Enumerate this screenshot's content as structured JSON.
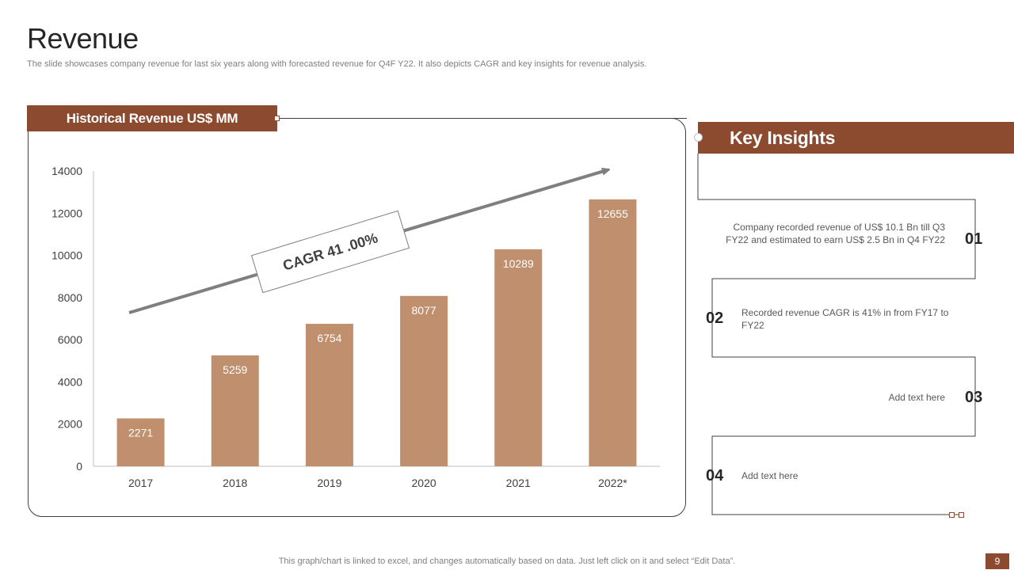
{
  "title": "Revenue",
  "subtitle": "The slide showcases company revenue for last six years along with forecasted revenue for Q4F Y22. It also depicts CAGR and key insights for revenue analysis.",
  "chart_panel": {
    "header": "Historical Revenue US$ MM"
  },
  "cagr_label": "CAGR 41 .00%",
  "chart_data": {
    "type": "bar",
    "title": "Historical Revenue US$ MM",
    "categories": [
      "2017",
      "2018",
      "2019",
      "2020",
      "2021",
      "2022*"
    ],
    "values": [
      2271,
      5259,
      6754,
      8077,
      10289,
      12655
    ],
    "ylim": [
      0,
      14000
    ],
    "yticks": [
      0,
      2000,
      4000,
      6000,
      8000,
      10000,
      12000,
      14000
    ],
    "xlabel": "",
    "ylabel": "",
    "grid": false,
    "bar_color": "#bf8f6e",
    "data_labels": true
  },
  "key_insights": {
    "header": "Key Insights",
    "items": [
      {
        "num": "01",
        "text": "Company recorded revenue  of US$ 10.1 Bn till Q3 FY22 and estimated to earn US$ 2.5 Bn in Q4 FY22"
      },
      {
        "num": "02",
        "text": "Recorded revenue  CAGR is 41% in from FY17 to FY22"
      },
      {
        "num": "03",
        "text": "Add text here"
      },
      {
        "num": "04",
        "text": "Add text here"
      }
    ]
  },
  "footer_note": "This graph/chart is linked to excel,  and changes automatically based on data. Just left click on it and select “Edit Data”.",
  "page_number": "9",
  "colors": {
    "accent": "#8c4a2f",
    "bar": "#bf8f6e",
    "arrow": "#7f7f7f"
  }
}
